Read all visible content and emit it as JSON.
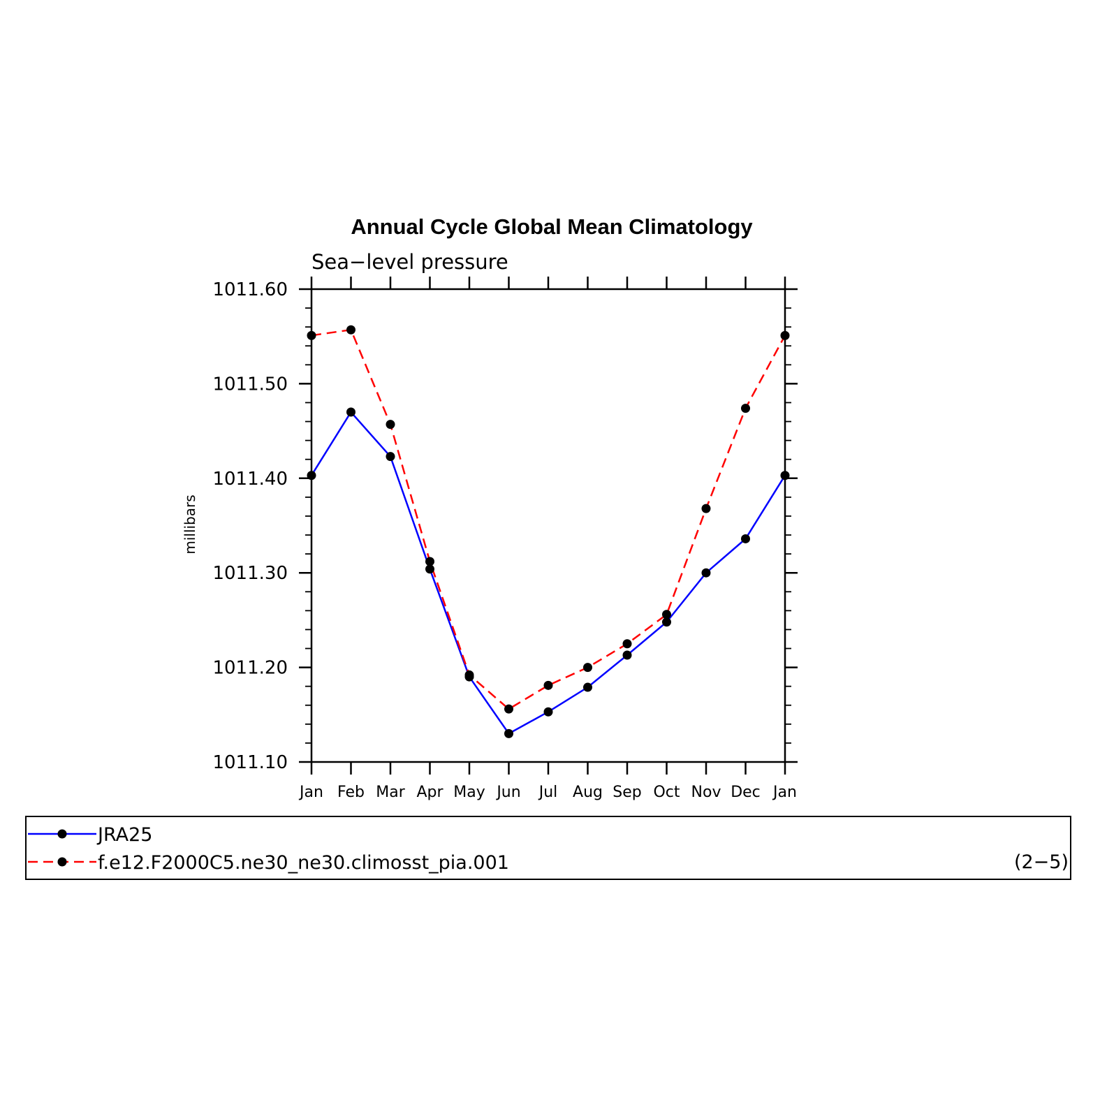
{
  "chart_data": {
    "type": "line",
    "title": "Annual Cycle Global Mean Climatology",
    "subtitle": "Sea−level pressure",
    "ylabel": "millibars",
    "xlabel": "",
    "categories": [
      "Jan",
      "Feb",
      "Mar",
      "Apr",
      "May",
      "Jun",
      "Jul",
      "Aug",
      "Sep",
      "Oct",
      "Nov",
      "Dec",
      "Jan"
    ],
    "ylim": [
      1011.1,
      1011.6
    ],
    "yticks": [
      "1011.10",
      "1011.20",
      "1011.30",
      "1011.40",
      "1011.50",
      "1011.60"
    ],
    "series": [
      {
        "name": "JRA25",
        "color": "#0000ff",
        "dash": "solid",
        "values": [
          1011.403,
          1011.47,
          1011.423,
          1011.304,
          1011.19,
          1011.13,
          1011.153,
          1011.179,
          1011.213,
          1011.248,
          1011.3,
          1011.336,
          1011.403
        ]
      },
      {
        "name": "f.e12.F2000C5.ne30_ne30.climosst_pia.001",
        "color": "#ff0000",
        "dash": "dashed",
        "values": [
          1011.551,
          1011.557,
          1011.457,
          1011.312,
          1011.192,
          1011.156,
          1011.181,
          1011.2,
          1011.225,
          1011.256,
          1011.368,
          1011.474,
          1011.551
        ]
      }
    ],
    "legend": {
      "placement": "bottom",
      "panel_label": "(2−5)"
    },
    "marker_color": "#000000",
    "grid": false
  }
}
